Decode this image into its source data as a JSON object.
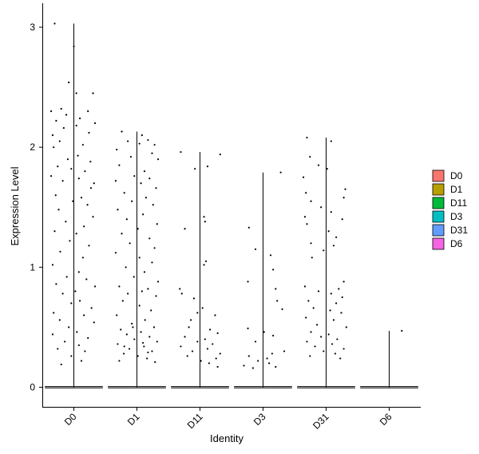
{
  "chart_data": {
    "type": "violin",
    "xlabel": "Identity",
    "ylabel": "Expression Level",
    "categories": [
      "D0",
      "D1",
      "D11",
      "D3",
      "D31",
      "D6"
    ],
    "colors": {
      "D0": "#F8766D",
      "D1": "#B79F00",
      "D11": "#00BA38",
      "D3": "#00BFC4",
      "D31": "#619CFF",
      "D6": "#F564E3"
    },
    "y_ticks": [
      0,
      1,
      2,
      3
    ],
    "ylim": [
      -0.17,
      3.2
    ],
    "legend": {
      "position": "right",
      "entries": [
        "D0",
        "D1",
        "D11",
        "D3",
        "D31",
        "D6"
      ]
    },
    "grid": false,
    "series": [
      {
        "category": "D0",
        "max": 3.03,
        "points": [
          [
            -0.38,
            3.03
          ],
          [
            0,
            2.84
          ],
          [
            -0.1,
            2.54
          ],
          [
            0.05,
            2.45
          ],
          [
            0.38,
            2.45
          ],
          [
            -0.25,
            2.32
          ],
          [
            -0.45,
            2.3
          ],
          [
            0.28,
            2.3
          ],
          [
            -0.15,
            2.27
          ],
          [
            0.12,
            2.24
          ],
          [
            -0.35,
            2.22
          ],
          [
            0.42,
            2.2
          ],
          [
            0.05,
            2.18
          ],
          [
            -0.2,
            2.16
          ],
          [
            0.3,
            2.12
          ],
          [
            -0.42,
            2.1
          ],
          [
            -0.28,
            2.05
          ],
          [
            0.18,
            2.02
          ],
          [
            -0.4,
            2.0
          ],
          [
            0.08,
            1.93
          ],
          [
            -0.12,
            1.9
          ],
          [
            0.33,
            1.88
          ],
          [
            -0.32,
            1.84
          ],
          [
            -0.05,
            1.82
          ],
          [
            0.22,
            1.8
          ],
          [
            -0.45,
            1.76
          ],
          [
            0.1,
            1.74
          ],
          [
            -0.22,
            1.72
          ],
          [
            0.4,
            1.7
          ],
          [
            0.34,
            1.66
          ],
          [
            -0.36,
            1.6
          ],
          [
            0.15,
            1.58
          ],
          [
            -0.02,
            1.55
          ],
          [
            0.27,
            1.52
          ],
          [
            -0.3,
            1.48
          ],
          [
            0.38,
            1.42
          ],
          [
            -0.16,
            1.38
          ],
          [
            0.2,
            1.34
          ],
          [
            -0.38,
            1.3
          ],
          [
            0.05,
            1.28
          ],
          [
            -0.08,
            1.22
          ],
          [
            0.3,
            1.18
          ],
          [
            -0.27,
            1.13
          ],
          [
            0.18,
            1.08
          ],
          [
            -0.42,
            1.02
          ],
          [
            0.1,
            0.96
          ],
          [
            -0.14,
            0.92
          ],
          [
            0.25,
            0.9
          ],
          [
            -0.35,
            0.86
          ],
          [
            0.42,
            0.84
          ],
          [
            0.03,
            0.8
          ],
          [
            -0.22,
            0.78
          ],
          [
            0.12,
            0.72
          ],
          [
            -0.05,
            0.7
          ],
          [
            0.35,
            0.66
          ],
          [
            -0.4,
            0.62
          ],
          [
            0.2,
            0.6
          ],
          [
            -0.28,
            0.56
          ],
          [
            0.4,
            0.54
          ],
          [
            -0.1,
            0.5
          ],
          [
            0.06,
            0.46
          ],
          [
            -0.42,
            0.44
          ],
          [
            0.28,
            0.41
          ],
          [
            -0.18,
            0.38
          ],
          [
            0.1,
            0.35
          ],
          [
            -0.32,
            0.32
          ],
          [
            0.22,
            0.3
          ],
          [
            -0.05,
            0.26
          ],
          [
            0.15,
            0.22
          ],
          [
            -0.25,
            0.19
          ]
        ]
      },
      {
        "category": "D1",
        "max": 2.13,
        "points": [
          [
            -0.3,
            2.13
          ],
          [
            0.1,
            2.1
          ],
          [
            0.22,
            2.06
          ],
          [
            -0.18,
            2.05
          ],
          [
            0.05,
            2.03
          ],
          [
            0.35,
            2.02
          ],
          [
            -0.4,
            1.98
          ],
          [
            0.3,
            1.95
          ],
          [
            -0.12,
            1.92
          ],
          [
            0.42,
            1.9
          ],
          [
            -0.35,
            1.85
          ],
          [
            0.15,
            1.8
          ],
          [
            -0.05,
            1.76
          ],
          [
            0.25,
            1.74
          ],
          [
            -0.42,
            1.72
          ],
          [
            0.08,
            1.7
          ],
          [
            0.38,
            1.66
          ],
          [
            -0.25,
            1.62
          ],
          [
            0.18,
            1.58
          ],
          [
            -0.1,
            1.55
          ],
          [
            0.32,
            1.52
          ],
          [
            -0.38,
            1.48
          ],
          [
            0.12,
            1.44
          ],
          [
            -0.2,
            1.4
          ],
          [
            0.4,
            1.36
          ],
          [
            0.02,
            1.32
          ],
          [
            -0.3,
            1.28
          ],
          [
            0.25,
            1.24
          ],
          [
            -0.14,
            1.2
          ],
          [
            0.35,
            1.16
          ],
          [
            -0.42,
            1.12
          ],
          [
            0.05,
            1.08
          ],
          [
            0.3,
            1.04
          ],
          [
            -0.22,
            1.0
          ],
          [
            0.15,
            0.96
          ],
          [
            -0.06,
            0.92
          ],
          [
            0.42,
            0.88
          ],
          [
            -0.35,
            0.84
          ],
          [
            0.22,
            0.82
          ],
          [
            0.1,
            0.8
          ],
          [
            -0.18,
            0.78
          ],
          [
            0.38,
            0.76
          ],
          [
            -0.28,
            0.72
          ],
          [
            0.05,
            0.68
          ],
          [
            0.28,
            0.64
          ],
          [
            -0.4,
            0.6
          ],
          [
            0.16,
            0.56
          ],
          [
            -0.1,
            0.53
          ],
          [
            0.34,
            0.5
          ],
          [
            -0.32,
            0.48
          ],
          [
            0.08,
            0.46
          ],
          [
            -0.2,
            0.44
          ],
          [
            0.25,
            0.42
          ],
          [
            -0.05,
            0.4
          ],
          [
            0.4,
            0.38
          ],
          [
            -0.38,
            0.36
          ],
          [
            0.14,
            0.34
          ],
          [
            -0.15,
            0.32
          ],
          [
            0.3,
            0.3
          ],
          [
            -0.26,
            0.28
          ],
          [
            0.02,
            0.26
          ],
          [
            0.2,
            0.24
          ],
          [
            -0.35,
            0.22
          ],
          [
            0.36,
            0.21
          ],
          [
            -0.08,
            0.5
          ],
          [
            0.12,
            0.37
          ],
          [
            -0.25,
            0.34
          ],
          [
            0.22,
            0.29
          ]
        ]
      },
      {
        "category": "D11",
        "max": 1.96,
        "points": [
          [
            -0.38,
            1.96
          ],
          [
            0.4,
            1.94
          ],
          [
            0.15,
            1.84
          ],
          [
            -0.1,
            1.82
          ],
          [
            0.08,
            1.42
          ],
          [
            0.1,
            1.38
          ],
          [
            -0.3,
            1.32
          ],
          [
            0.12,
            1.05
          ],
          [
            0.08,
            1.02
          ],
          [
            -0.4,
            0.82
          ],
          [
            -0.36,
            0.78
          ],
          [
            -0.12,
            0.74
          ],
          [
            0.05,
            0.66
          ],
          [
            -0.05,
            0.62
          ],
          [
            0.3,
            0.6
          ],
          [
            -0.18,
            0.56
          ],
          [
            -0.22,
            0.5
          ],
          [
            0.2,
            0.48
          ],
          [
            0.35,
            0.45
          ],
          [
            -0.3,
            0.42
          ],
          [
            0.1,
            0.4
          ],
          [
            -0.05,
            0.38
          ],
          [
            0.25,
            0.36
          ],
          [
            -0.38,
            0.34
          ],
          [
            0.15,
            0.32
          ],
          [
            -0.15,
            0.3
          ],
          [
            0.4,
            0.28
          ],
          [
            -0.25,
            0.26
          ],
          [
            0.32,
            0.24
          ],
          [
            0.02,
            0.22
          ],
          [
            0.18,
            0.2
          ],
          [
            0.35,
            0.17
          ]
        ]
      },
      {
        "category": "D3",
        "max": 1.79,
        "points": [
          [
            0.35,
            1.79
          ],
          [
            -0.28,
            1.33
          ],
          [
            -0.15,
            1.15
          ],
          [
            0.15,
            1.1
          ],
          [
            0.2,
            0.98
          ],
          [
            -0.3,
            0.88
          ],
          [
            0.25,
            0.82
          ],
          [
            0.28,
            0.72
          ],
          [
            0.38,
            0.65
          ],
          [
            -0.3,
            0.49
          ],
          [
            0.02,
            0.46
          ],
          [
            0.2,
            0.43
          ],
          [
            -0.15,
            0.38
          ],
          [
            0.42,
            0.3
          ],
          [
            0.18,
            0.28
          ],
          [
            -0.28,
            0.26
          ],
          [
            0.08,
            0.24
          ],
          [
            -0.1,
            0.22
          ],
          [
            0.12,
            0.2
          ],
          [
            -0.38,
            0.18
          ],
          [
            0.25,
            0.17
          ],
          [
            -0.2,
            0.16
          ]
        ]
      },
      {
        "category": "D31",
        "max": 2.08,
        "points": [
          [
            -0.38,
            2.08
          ],
          [
            0.1,
            2.05
          ],
          [
            -0.32,
            1.92
          ],
          [
            -0.15,
            1.85
          ],
          [
            0.02,
            1.82
          ],
          [
            -0.45,
            1.75
          ],
          [
            0.38,
            1.65
          ],
          [
            -0.4,
            1.62
          ],
          [
            0.35,
            1.58
          ],
          [
            -0.3,
            1.55
          ],
          [
            -0.1,
            1.5
          ],
          [
            0.1,
            1.46
          ],
          [
            -0.42,
            1.42
          ],
          [
            0.32,
            1.4
          ],
          [
            -0.38,
            1.36
          ],
          [
            0.05,
            1.3
          ],
          [
            0.2,
            1.25
          ],
          [
            -0.3,
            1.2
          ],
          [
            0.15,
            1.18
          ],
          [
            -0.05,
            1.14
          ],
          [
            -0.28,
            1.08
          ],
          [
            0.35,
            0.88
          ],
          [
            -0.42,
            0.84
          ],
          [
            0.25,
            0.82
          ],
          [
            -0.15,
            0.8
          ],
          [
            0.1,
            0.78
          ],
          [
            0.32,
            0.75
          ],
          [
            -0.35,
            0.72
          ],
          [
            0.2,
            0.7
          ],
          [
            -0.25,
            0.66
          ],
          [
            0.08,
            0.64
          ],
          [
            0.3,
            0.62
          ],
          [
            -0.4,
            0.58
          ],
          [
            0.15,
            0.56
          ],
          [
            -0.18,
            0.52
          ],
          [
            0.4,
            0.5
          ],
          [
            -0.3,
            0.46
          ],
          [
            0.05,
            0.44
          ],
          [
            -0.1,
            0.42
          ],
          [
            0.22,
            0.4
          ],
          [
            -0.38,
            0.38
          ],
          [
            0.12,
            0.36
          ],
          [
            -0.22,
            0.34
          ],
          [
            0.35,
            0.32
          ],
          [
            -0.05,
            0.3
          ],
          [
            0.18,
            0.28
          ],
          [
            -0.32,
            0.26
          ],
          [
            0.28,
            0.24
          ]
        ]
      },
      {
        "category": "D6",
        "max": 0.47,
        "points": [
          [
            0.25,
            0.47
          ]
        ]
      }
    ]
  }
}
